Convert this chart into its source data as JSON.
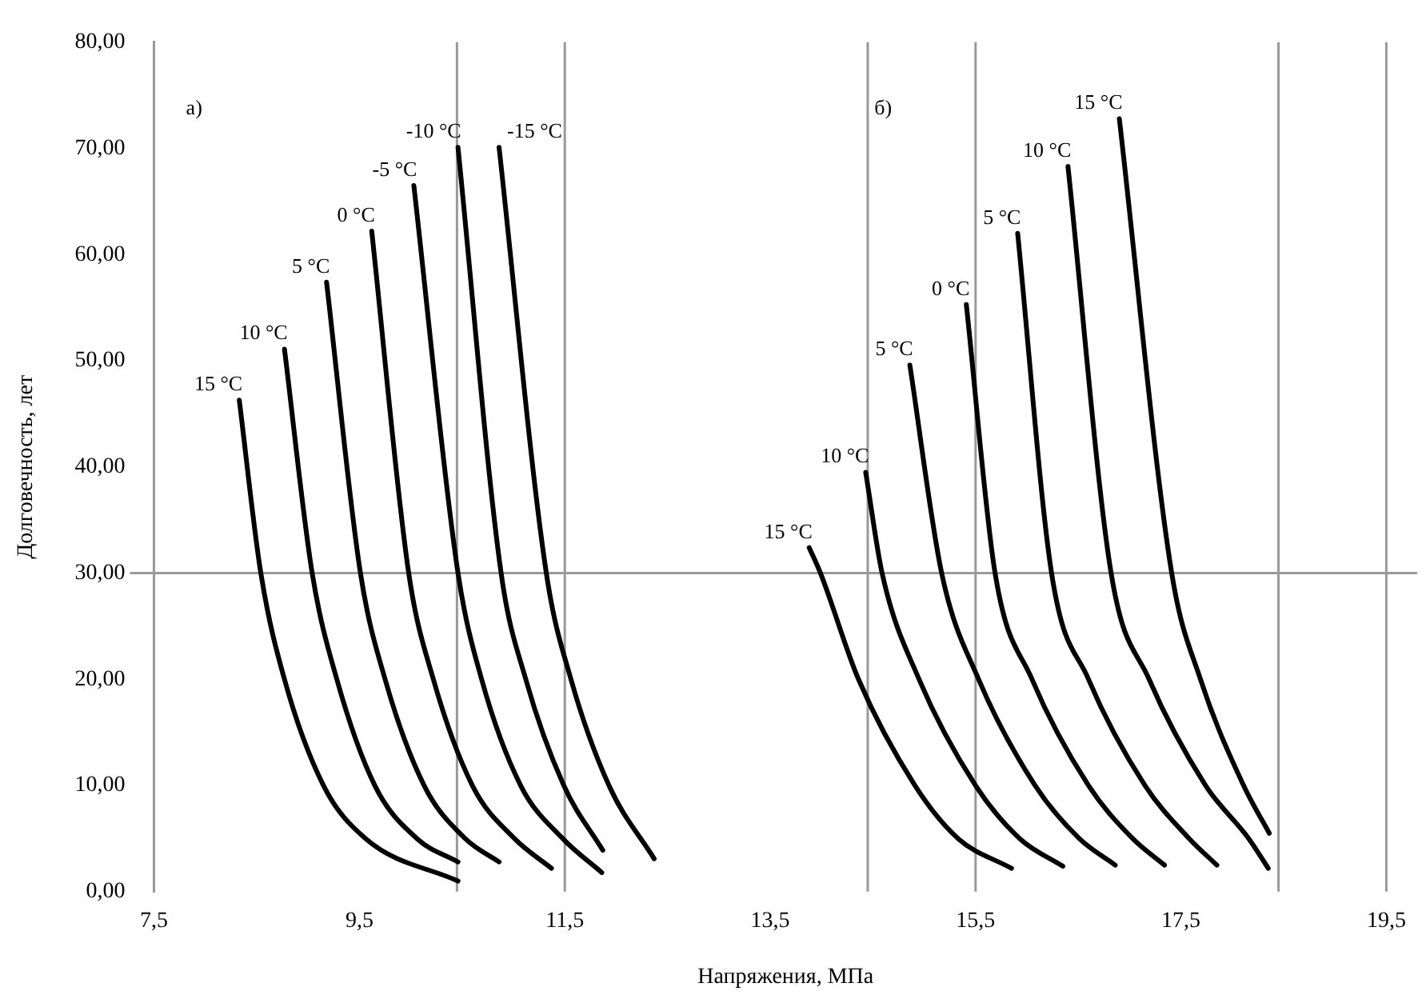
{
  "chart_data": {
    "type": "line",
    "xlabel": "Напряжения, МПа",
    "ylabel": "Долговечность, лет",
    "annotations": [
      "а)",
      "б)"
    ],
    "xlim": [
      7.5,
      19.8
    ],
    "ylim": [
      0,
      80
    ],
    "xticks": [
      {
        "value": 7.5,
        "label": "7,5"
      },
      {
        "value": 9.5,
        "label": "9,5"
      },
      {
        "value": 11.5,
        "label": "11,5"
      },
      {
        "value": 13.5,
        "label": "13,5"
      },
      {
        "value": 15.5,
        "label": "15,5"
      },
      {
        "value": 17.5,
        "label": "17,5"
      },
      {
        "value": 19.5,
        "label": "19,5"
      }
    ],
    "yticks": [
      {
        "value": 0,
        "label": "0,00"
      },
      {
        "value": 10,
        "label": "10,00"
      },
      {
        "value": 20,
        "label": "20,00"
      },
      {
        "value": 30,
        "label": "30,00"
      },
      {
        "value": 40,
        "label": "40,00"
      },
      {
        "value": 50,
        "label": "50,00"
      },
      {
        "value": 60,
        "label": "60,00"
      },
      {
        "value": 70,
        "label": "70,00"
      },
      {
        "value": 80,
        "label": "80,00"
      }
    ],
    "ref_lines": [
      {
        "axis": "x",
        "value": 10.45,
        "color": "#999999"
      },
      {
        "axis": "x",
        "value": 11.5,
        "color": "#999999"
      },
      {
        "axis": "x",
        "value": 14.45,
        "color": "#999999"
      },
      {
        "axis": "x",
        "value": 15.5,
        "color": "#999999"
      },
      {
        "axis": "x",
        "value": 18.45,
        "color": "#999999"
      },
      {
        "axis": "x",
        "value": 19.5,
        "color": "#999999"
      },
      {
        "axis": "y",
        "value": 30,
        "color": "#999999"
      }
    ],
    "series": [
      {
        "name": "15 °C",
        "color": "#000000",
        "x": [
          8.33,
          8.54,
          8.77,
          9.15,
          9.56,
          10.46
        ],
        "values": [
          46.3,
          30,
          20,
          10,
          5,
          1.0
        ]
      },
      {
        "name": "10 °C",
        "color": "#000000",
        "x": [
          8.77,
          9.04,
          9.28,
          9.65,
          10.06,
          10.46
        ],
        "values": [
          51.1,
          30,
          20,
          10,
          5,
          2.8
        ]
      },
      {
        "name": "5 °C",
        "color": "#000000",
        "x": [
          9.18,
          9.51,
          9.75,
          10.13,
          10.53,
          10.86
        ],
        "values": [
          57.4,
          30,
          20,
          10,
          5,
          2.8
        ]
      },
      {
        "name": "0 °C",
        "color": "#000000",
        "x": [
          9.62,
          9.98,
          10.22,
          10.6,
          11.01,
          11.37
        ],
        "values": [
          62.2,
          30,
          20,
          10,
          5,
          2.2
        ]
      },
      {
        "name": "-5 °C",
        "color": "#000000",
        "x": [
          10.03,
          10.46,
          10.69,
          11.07,
          11.48,
          11.86
        ],
        "values": [
          66.5,
          30,
          20,
          10,
          5,
          1.8
        ]
      },
      {
        "name": "-10 °C",
        "color": "#000000",
        "x": [
          10.46,
          10.88,
          11.12,
          11.49,
          11.87
        ],
        "values": [
          70.1,
          30,
          20,
          10,
          3.9
        ]
      },
      {
        "name": "-15 °C",
        "color": "#000000",
        "x": [
          10.86,
          11.32,
          11.56,
          11.93,
          12.37
        ],
        "values": [
          70.1,
          30,
          20,
          10,
          3.1
        ]
      },
      {
        "name": "15 °C",
        "color": "#000000",
        "x": [
          13.88,
          13.99,
          14.36,
          14.91,
          15.33,
          15.85
        ],
        "values": [
          32.4,
          30,
          20,
          10,
          5,
          2.2
        ]
      },
      {
        "name": "10 °C",
        "color": "#000000",
        "x": [
          14.43,
          14.59,
          14.95,
          15.5,
          15.93,
          16.35
        ],
        "values": [
          39.5,
          30,
          20,
          10,
          5,
          2.4
        ]
      },
      {
        "name": "5 °C",
        "color": "#000000",
        "x": [
          14.86,
          15.17,
          15.53,
          16.08,
          16.51,
          16.86
        ],
        "values": [
          49.6,
          30,
          20,
          10,
          5,
          2.5
        ]
      },
      {
        "name": "0 °C",
        "color": "#000000",
        "x": [
          15.41,
          15.69,
          16.05,
          16.6,
          17.03,
          17.34
        ],
        "values": [
          55.3,
          30,
          20,
          10,
          5,
          2.5
        ]
      },
      {
        "name": "5 °C",
        "color": "#000000",
        "x": [
          15.91,
          16.24,
          16.6,
          17.15,
          17.58,
          17.85
        ],
        "values": [
          62.0,
          30,
          20,
          10,
          5,
          2.5
        ]
      },
      {
        "name": "10 °C",
        "color": "#000000",
        "x": [
          16.4,
          16.82,
          17.19,
          17.74,
          18.16,
          18.35
        ],
        "values": [
          68.3,
          30,
          20,
          10,
          5,
          2.2
        ]
      },
      {
        "name": "15 °C",
        "color": "#000000",
        "x": [
          16.9,
          17.41,
          17.69,
          18.11,
          18.36
        ],
        "values": [
          72.8,
          30,
          20,
          10,
          5.5
        ]
      }
    ]
  }
}
